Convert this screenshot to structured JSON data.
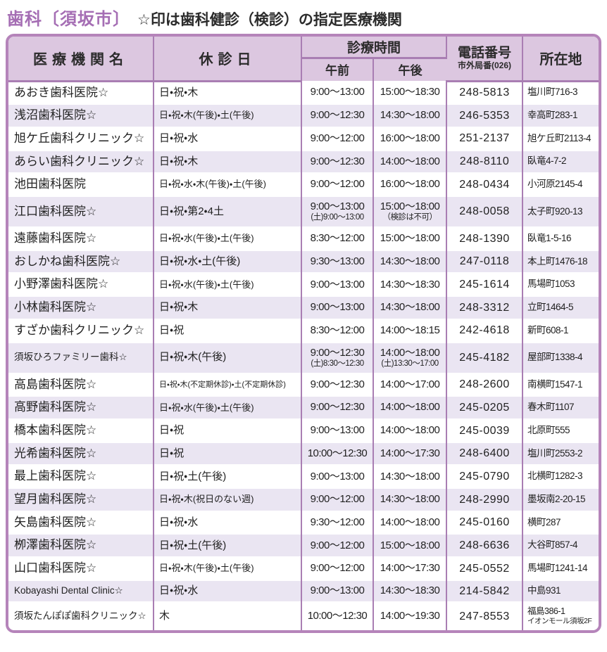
{
  "title": {
    "category": "歯科〔須坂市〕",
    "note": "☆印は歯科健診（検診）の指定医療機関"
  },
  "colors": {
    "accent_purple": "#a56eb4",
    "border_purple": "#b584ba",
    "divider_purple": "#a97eb3",
    "header_bg": "#dcc7e0",
    "stripe_bg": "#eae5f2",
    "text": "#222222"
  },
  "table": {
    "headers": {
      "name": "医療機関名",
      "closed": "休診日",
      "hours": "診療時間",
      "am": "午前",
      "pm": "午後",
      "phone": "電話番号",
      "phone_sub": "市外局番(026)",
      "address": "所在地"
    },
    "rows": [
      {
        "name": "あおき歯科医院☆",
        "closed": "日・祝・木",
        "am": "9:00～13:00",
        "pm": "15:00～18:30",
        "phone": "248-5813",
        "address": "塩川町716-3"
      },
      {
        "name": "浅沼歯科医院☆",
        "closed": "日・祝・木(午後)・土(午後)",
        "am": "9:00～12:30",
        "pm": "14:30～18:00",
        "phone": "246-5353",
        "address": "幸高町283-1"
      },
      {
        "name": "旭ケ丘歯科クリニック☆",
        "closed": "日・祝・水",
        "am": "9:00～12:00",
        "pm": "16:00～18:00",
        "phone": "251-2137",
        "address": "旭ケ丘町2113-4"
      },
      {
        "name": "あらい歯科クリニック☆",
        "closed": "日・祝・木",
        "am": "9:00～12:30",
        "pm": "14:00～18:00",
        "phone": "248-8110",
        "address": "臥竜4-7-2"
      },
      {
        "name": "池田歯科医院",
        "closed": "日・祝・水・木(午後)・土(午後)",
        "am": "9:00～12:00",
        "pm": "16:00～18:00",
        "phone": "248-0434",
        "address": "小河原2145-4"
      },
      {
        "name": "江口歯科医院☆",
        "closed": "日・祝・第2・4土",
        "am": "9:00～13:00",
        "am2": "(土)9:00～13:00",
        "pm": "15:00～18:00",
        "pm2": "（検診は不可）",
        "phone": "248-0058",
        "address": "太子町920-13"
      },
      {
        "name": "遠藤歯科医院☆",
        "closed": "日・祝・水(午後)・土(午後)",
        "am": "8:30～12:00",
        "pm": "15:00～18:00",
        "phone": "248-1390",
        "address": "臥竜1-5-16"
      },
      {
        "name": "おしかね歯科医院☆",
        "closed": "日・祝・水・土(午後)",
        "am": "9:30～13:00",
        "pm": "14:30～18:00",
        "phone": "247-0118",
        "address": "本上町1476-18"
      },
      {
        "name": "小野澤歯科医院☆",
        "closed": "日・祝・水(午後)・土(午後)",
        "am": "9:00～13:00",
        "pm": "14:30～18:30",
        "phone": "245-1614",
        "address": "馬場町1053"
      },
      {
        "name": "小林歯科医院☆",
        "closed": "日・祝・木",
        "am": "9:00～13:00",
        "pm": "14:30～18:00",
        "phone": "248-3312",
        "address": "立町1464-5"
      },
      {
        "name": "すざか歯科クリニック☆",
        "closed": "日・祝",
        "am": "8:30～12:00",
        "pm": "14:00～18:15",
        "phone": "242-4618",
        "address": "新町608-1"
      },
      {
        "name": "須坂ひろファミリー歯科☆",
        "closed": "日・祝・木(午後)",
        "am": "9:00～12:30",
        "am2": "(土)8:30～12:30",
        "pm": "14:00～18:00",
        "pm2": "(土)13:30～17:00",
        "phone": "245-4182",
        "address": "屋部町1338-4"
      },
      {
        "name": "高島歯科医院☆",
        "closed": "日・祝・木(不定期休診)・土(不定期休診)",
        "am": "9:00～12:30",
        "pm": "14:00～17:00",
        "phone": "248-2600",
        "address": "南横町1547-1"
      },
      {
        "name": "高野歯科医院☆",
        "closed": "日・祝・水(午後)・土(午後)",
        "am": "9:00～12:30",
        "pm": "14:00～18:00",
        "phone": "245-0205",
        "address": "春木町1107"
      },
      {
        "name": "橋本歯科医院☆",
        "closed": "日・祝",
        "am": "9:00～13:00",
        "pm": "14:00～18:00",
        "phone": "245-0039",
        "address": "北原町555"
      },
      {
        "name": "光希歯科医院☆",
        "closed": "日・祝",
        "am": "10:00～12:30",
        "pm": "14:00～17:30",
        "phone": "248-6400",
        "address": "塩川町2553-2"
      },
      {
        "name": "最上歯科医院☆",
        "closed": "日・祝・土(午後)",
        "am": "9:00～13:00",
        "pm": "14:30～18:00",
        "phone": "245-0790",
        "address": "北横町1282-3"
      },
      {
        "name": "望月歯科医院☆",
        "closed": "日・祝・木(祝日のない週)",
        "am": "9:00～12:00",
        "pm": "14:30～18:00",
        "phone": "248-2990",
        "address": "墨坂南2-20-15"
      },
      {
        "name": "矢島歯科医院☆",
        "closed": "日・祝・水",
        "am": "9:30～12:00",
        "pm": "14:00～18:00",
        "phone": "245-0160",
        "address": "横町287"
      },
      {
        "name": "栁澤歯科医院☆",
        "closed": "日・祝・土(午後)",
        "am": "9:00～12:00",
        "pm": "15:00～18:00",
        "phone": "248-6636",
        "address": "大谷町857-4"
      },
      {
        "name": "山口歯科医院☆",
        "closed": "日・祝・木(午後)・土(午後)",
        "am": "9:00～12:00",
        "pm": "14:00～17:30",
        "phone": "245-0552",
        "address": "馬場町1241-14"
      },
      {
        "name": "Kobayashi Dental Clinic☆",
        "closed": "日・祝・水",
        "am": "9:00～13:00",
        "pm": "14:30～18:30",
        "phone": "214-5842",
        "address": "中島931"
      },
      {
        "name": "須坂たんぽぽ歯科クリニック☆",
        "closed": "木",
        "am": "10:00～12:30",
        "pm": "14:00～19:30",
        "phone": "247-8553",
        "address": "福島386-1",
        "address2": "イオンモール須坂2F"
      }
    ]
  }
}
